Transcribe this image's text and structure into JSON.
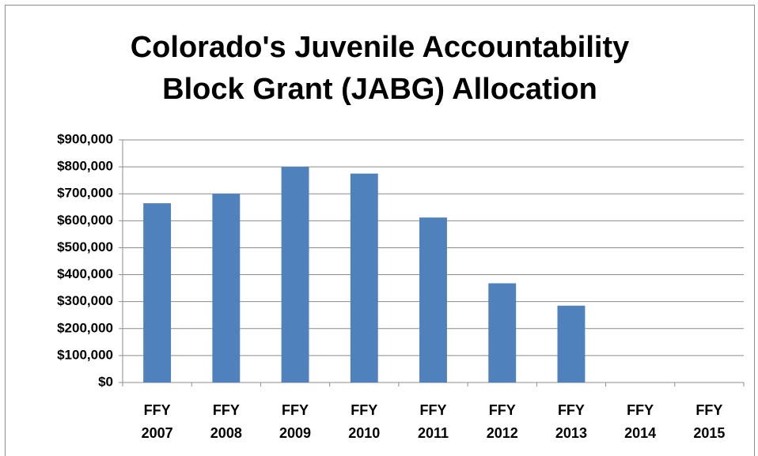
{
  "chart_data": {
    "type": "bar",
    "title": "Colorado's Juvenile Accountability Block Grant (JABG) Allocation",
    "categories": [
      "FFY 2007",
      "FFY 2008",
      "FFY 2009",
      "FFY 2010",
      "FFY 2011",
      "FFY 2012",
      "FFY 2013",
      "FFY 2014",
      "FFY 2015"
    ],
    "values": [
      665000,
      700000,
      800000,
      775000,
      612000,
      368000,
      285000,
      null,
      null
    ],
    "color": "#4f81bd",
    "ylim": [
      0,
      900000
    ],
    "yticks": [
      {
        "value": 0,
        "label": "$0"
      },
      {
        "value": 100000,
        "label": "$100,000"
      },
      {
        "value": 200000,
        "label": "$200,000"
      },
      {
        "value": 300000,
        "label": "$300,000"
      },
      {
        "value": 400000,
        "label": "$400,000"
      },
      {
        "value": 500000,
        "label": "$500,000"
      },
      {
        "value": 600000,
        "label": "$600,000"
      },
      {
        "value": 700000,
        "label": "$700,000"
      },
      {
        "value": 800000,
        "label": "$800,000"
      },
      {
        "value": 900000,
        "label": "$900,000"
      }
    ],
    "grid": true
  }
}
